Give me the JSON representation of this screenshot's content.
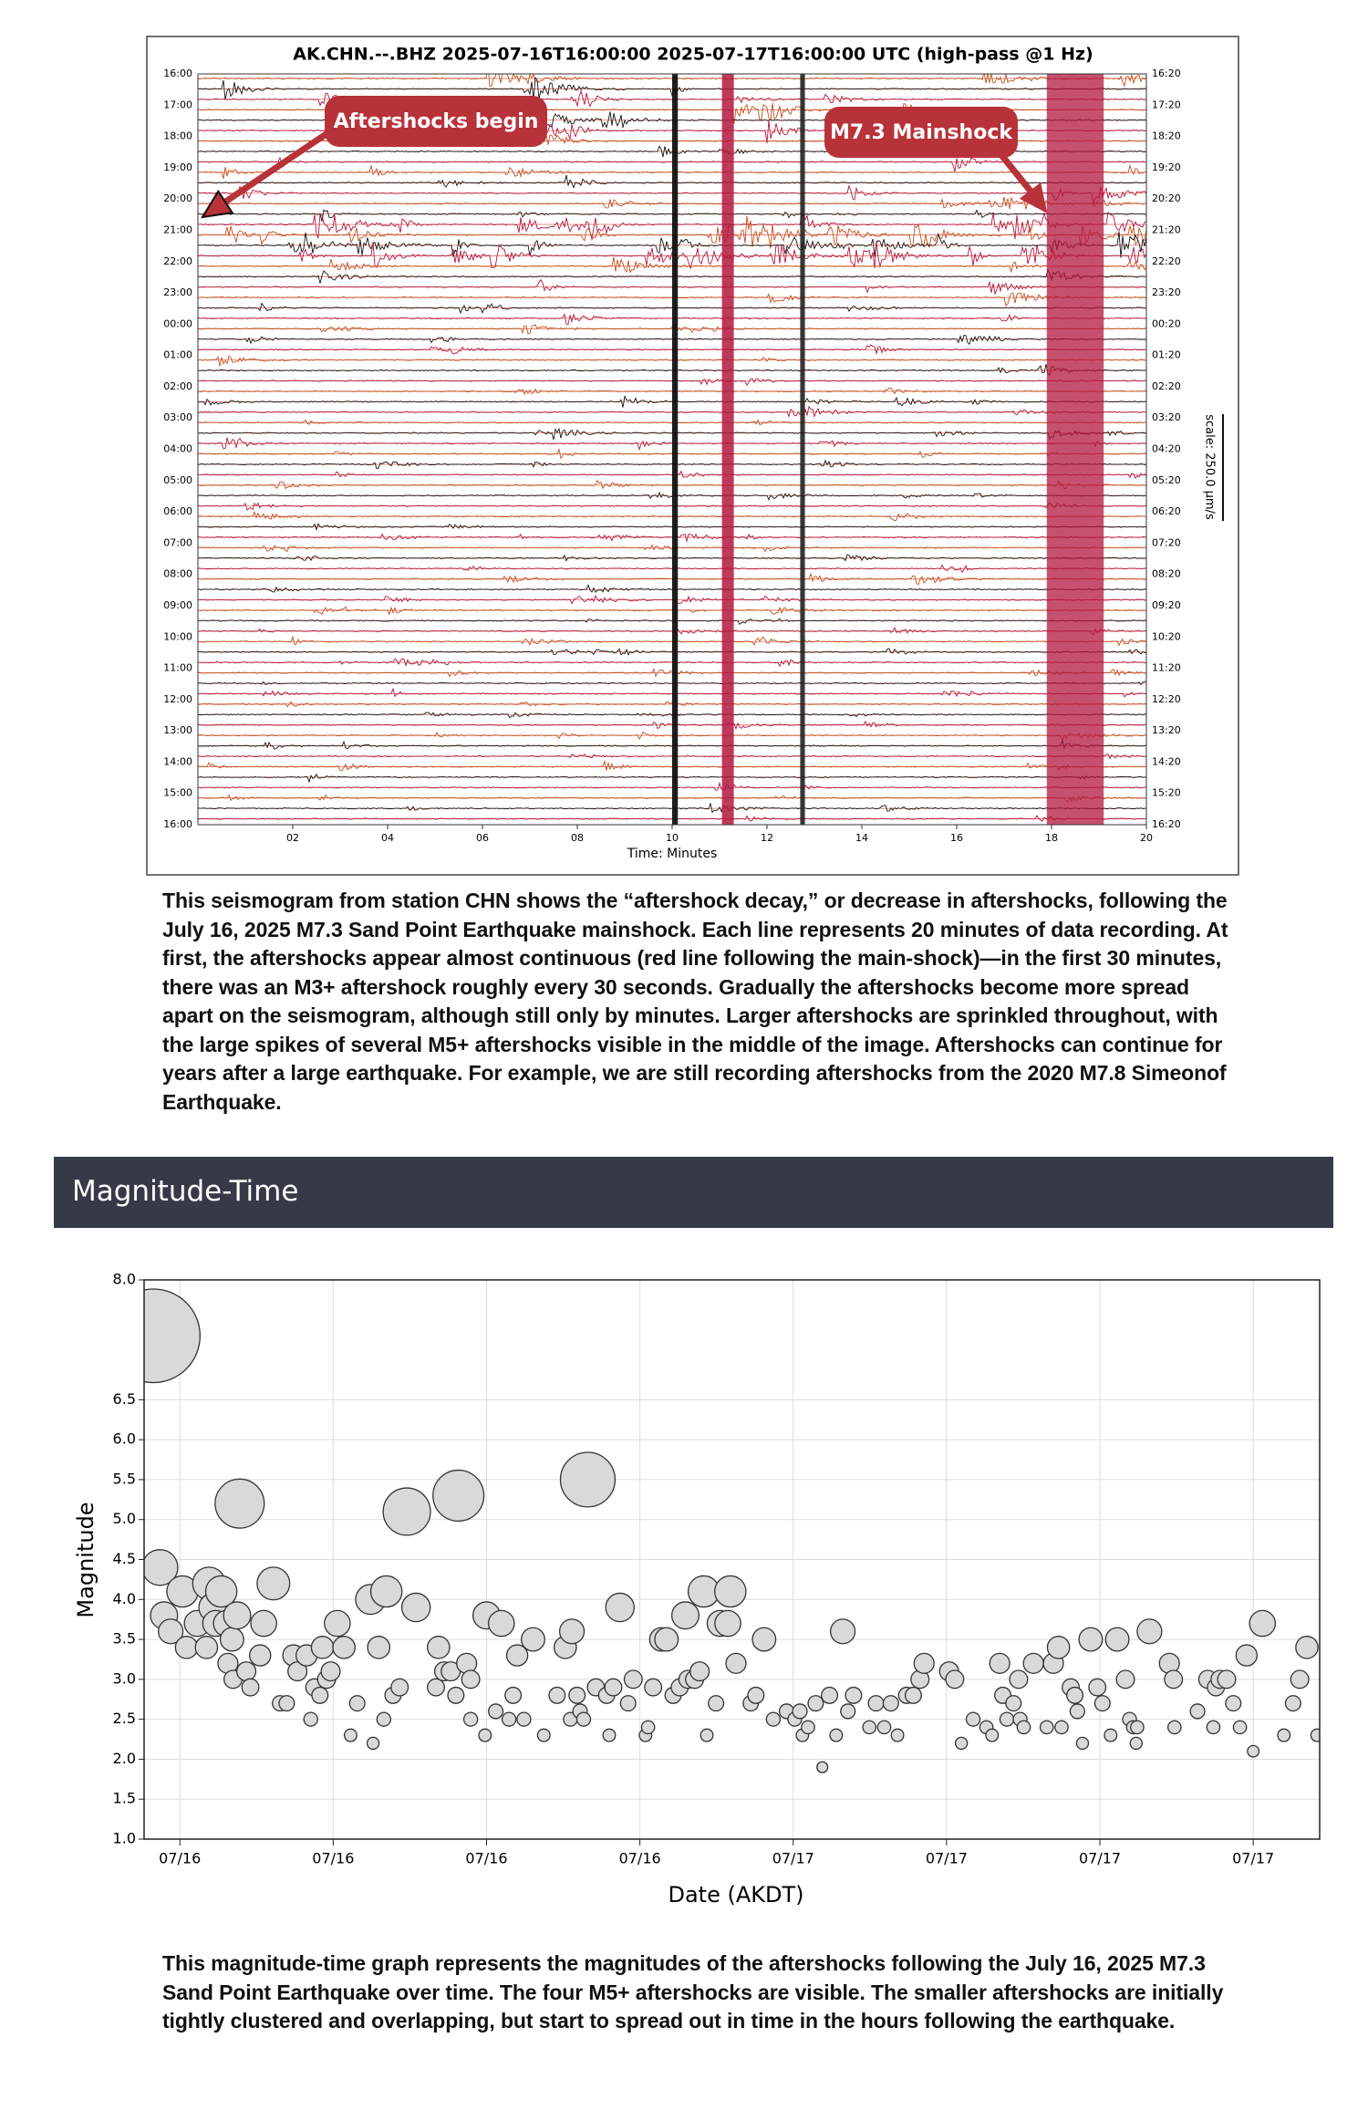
{
  "seismogram": {
    "title": "AK.CHN.--.BHZ 2025-07-16T16:00:00 2025-07-17T16:00:00 UTC (high-pass @1 Hz)",
    "row_labels_left": [
      "16:00",
      "17:00",
      "18:00",
      "19:00",
      "20:00",
      "21:00",
      "22:00",
      "23:00",
      "00:00",
      "01:00",
      "02:00",
      "03:00",
      "04:00",
      "05:00",
      "06:00",
      "07:00",
      "08:00",
      "09:00",
      "10:00",
      "11:00",
      "12:00",
      "13:00",
      "14:00",
      "15:00",
      "16:00"
    ],
    "row_labels_right": [
      "16:20",
      "17:20",
      "18:20",
      "19:20",
      "20:20",
      "21:20",
      "22:20",
      "23:20",
      "00:20",
      "01:20",
      "02:20",
      "03:20",
      "04:20",
      "05:20",
      "06:20",
      "07:20",
      "08:20",
      "09:20",
      "10:20",
      "11:20",
      "12:20",
      "13:20",
      "14:20",
      "15:20",
      "16:20"
    ],
    "xlim": [
      0,
      20
    ],
    "xticks": [
      {
        "value": 2,
        "label": "02"
      },
      {
        "value": 4,
        "label": "04"
      },
      {
        "value": 6,
        "label": "06"
      },
      {
        "value": 8,
        "label": "08"
      },
      10,
      12,
      14,
      16,
      18,
      20
    ],
    "xlabel": "Time: Minutes",
    "scale_label": "scale: 250.0 µm/s",
    "annotations": [
      "Aftershocks begin",
      "M7.3 Mainshock"
    ]
  },
  "caption_1": "This seismogram from station CHN shows the “aftershock decay,” or decrease in aftershocks, following the July 16, 2025 M7.3 Sand Point Earthquake mainshock. Each line represents 20 minutes of data recording. At first, the aftershocks appear almost continuous (red line following the main-shock)—in the first 30 minutes, there was an M3+ aftershock roughly every 30 seconds. Gradually the aftershocks become more spread apart on the seismogram, although still only by minutes. Larger aftershocks are sprinkled throughout, with the large spikes of several M5+ aftershocks visible in the middle of the image. Aftershocks can continue for years after a large earthquake. For example, we are still recording aftershocks from the  2020 M7.8 Simeonof Earthquake.",
  "section_title": "Magnitude-Time",
  "chart_data": {
    "type": "scatter",
    "xlabel": "Date (AKDT)",
    "ylabel": "Magnitude",
    "x": [
      -0.52,
      -0.39,
      -0.31,
      -0.18,
      0.05,
      0.13,
      0.34,
      0.57,
      0.65,
      0.52,
      0.7,
      0.81,
      0.91,
      0.94,
      1.04,
      1.02,
      1.12,
      1.17,
      1.3,
      1.38,
      1.57,
      1.64,
      1.83,
      1.96,
      2.09,
      2.22,
      2.3,
      2.48,
      2.56,
      2.63,
      2.74,
      2.79,
      2.87,
      2.95,
      3.08,
      3.21,
      3.34,
      3.47,
      3.73,
      3.78,
      3.89,
      3.99,
      4.04,
      4.17,
      4.3,
      4.44,
      4.62,
      5.01,
      5.06,
      5.17,
      5.3,
      5.4,
      5.45,
      5.61,
      5.69,
      5.69,
      5.97,
      6.0,
      6.18,
      6.29,
      6.44,
      6.52,
      6.6,
      6.73,
      6.91,
      7.12,
      7.38,
      7.54,
      7.64,
      7.67,
      7.77,
      7.83,
      7.9,
      7.98,
      8.14,
      8.35,
      8.4,
      8.48,
      8.61,
      8.77,
      8.87,
      9.11,
      9.16,
      9.26,
      9.42,
      9.52,
      9.65,
      9.78,
      9.89,
      9.94,
      10.07,
      10.17,
      10.25,
      10.31,
      10.49,
      10.57,
      10.72,
      10.77,
      10.88,
      11.17,
      11.27,
      11.43,
      11.61,
      11.87,
      12.03,
      12.13,
      12.18,
      12.29,
      12.44,
      12.57,
      12.71,
      12.84,
      12.97,
      13.07,
      13.18,
      13.49,
      13.62,
      13.78,
      13.91,
      14.04,
      14.22,
      14.35,
      14.48,
      14.56,
      15.05,
      15.16,
      15.29,
      15.52,
      15.78,
      15.89,
      16.04,
      16.1,
      16.18,
      16.31,
      16.41,
      16.44,
      16.51,
      16.7,
      16.96,
      17.09,
      17.19,
      17.25,
      17.43,
      17.51,
      17.56,
      17.66,
      17.82,
      17.95,
      18.05,
      18.21,
      18.34,
      18.5,
      18.58,
      18.65,
      18.71,
      18.73,
      18.97,
      19.36,
      19.44,
      19.46,
      19.91,
      20.11,
      20.22,
      20.27,
      20.35,
      20.48,
      20.61,
      20.74,
      20.87,
      21.0,
      21.18,
      21.6,
      21.78,
      21.91,
      22.05,
      22.25
    ],
    "values": [
      7.3,
      4.4,
      3.8,
      3.6,
      4.1,
      3.4,
      3.7,
      4.2,
      3.9,
      3.4,
      3.7,
      4.1,
      3.7,
      3.2,
      3.0,
      3.5,
      3.8,
      5.2,
      3.1,
      2.9,
      3.3,
      3.7,
      4.2,
      2.7,
      2.7,
      3.3,
      3.1,
      3.3,
      2.5,
      2.9,
      2.8,
      3.4,
      3.0,
      3.1,
      3.7,
      3.4,
      2.3,
      2.7,
      4.0,
      2.2,
      3.4,
      2.5,
      4.1,
      2.8,
      2.9,
      5.1,
      3.9,
      2.9,
      3.4,
      3.1,
      3.1,
      2.8,
      5.3,
      3.2,
      3.0,
      2.5,
      2.3,
      3.8,
      2.6,
      3.7,
      2.5,
      2.8,
      3.3,
      2.5,
      3.5,
      2.3,
      2.8,
      3.4,
      2.5,
      3.6,
      2.8,
      2.6,
      2.5,
      5.5,
      2.9,
      2.8,
      2.3,
      2.9,
      3.9,
      2.7,
      3.0,
      2.3,
      2.4,
      2.9,
      3.5,
      3.5,
      2.8,
      2.9,
      3.8,
      3.0,
      3.0,
      3.1,
      4.1,
      2.3,
      2.7,
      3.7,
      3.7,
      4.1,
      3.2,
      2.7,
      2.8,
      3.5,
      2.5,
      2.6,
      2.5,
      2.6,
      2.3,
      2.4,
      2.7,
      1.9,
      2.8,
      2.3,
      3.6,
      2.6,
      2.8,
      2.4,
      2.7,
      2.4,
      2.7,
      2.3,
      2.8,
      2.8,
      3.0,
      3.2,
      3.1,
      3.0,
      2.2,
      2.5,
      2.4,
      2.3,
      3.2,
      2.8,
      2.5,
      2.7,
      3.0,
      2.5,
      2.4,
      3.2,
      2.4,
      3.2,
      3.4,
      2.4,
      2.9,
      2.8,
      2.6,
      2.2,
      3.5,
      2.9,
      2.7,
      2.3,
      3.5,
      3.0,
      2.5,
      2.4,
      2.2,
      2.4,
      3.6,
      3.2,
      3.0,
      2.4,
      2.6,
      3.0,
      2.4,
      2.9,
      3.0,
      3.0,
      2.7,
      2.4,
      3.3,
      2.1,
      3.7,
      2.3,
      2.7,
      3.0,
      3.4,
      2.3
    ],
    "color": "#d9d9d9",
    "xlim": [
      -0.7,
      22.3
    ],
    "xticks": [
      {
        "value": 0,
        "label": "07/16"
      },
      {
        "value": 3,
        "label": "07/16"
      },
      {
        "value": 6,
        "label": "07/16"
      },
      {
        "value": 9,
        "label": "07/16"
      },
      {
        "value": 12,
        "label": "07/17"
      },
      {
        "value": 15,
        "label": "07/17"
      },
      {
        "value": 18,
        "label": "07/17"
      },
      {
        "value": 21,
        "label": "07/17"
      }
    ],
    "ylim": [
      1.0,
      8.0
    ],
    "yticks": [
      {
        "value": 1.0,
        "label": "1.0"
      },
      1.5,
      {
        "value": 2.0,
        "label": "2.0"
      },
      2.5,
      {
        "value": 3.0,
        "label": "3.0"
      },
      3.5,
      {
        "value": 4.0,
        "label": "4.0"
      },
      4.5,
      {
        "value": 5.0,
        "label": "5.0"
      },
      5.5,
      {
        "value": 6.0,
        "label": "6.0"
      },
      6.5,
      {
        "value": 8.0,
        "label": "8.0"
      }
    ],
    "grid": true
  },
  "caption_2": "This magnitude-time graph represents the magnitudes of the aftershocks following the July 16, 2025 M7.3 Sand Point Earthquake over time. The four M5+ aftershocks are visible. The smaller aftershocks are initially tightly clustered and overlapping, but start to spread out in time in the hours following the earthquake."
}
